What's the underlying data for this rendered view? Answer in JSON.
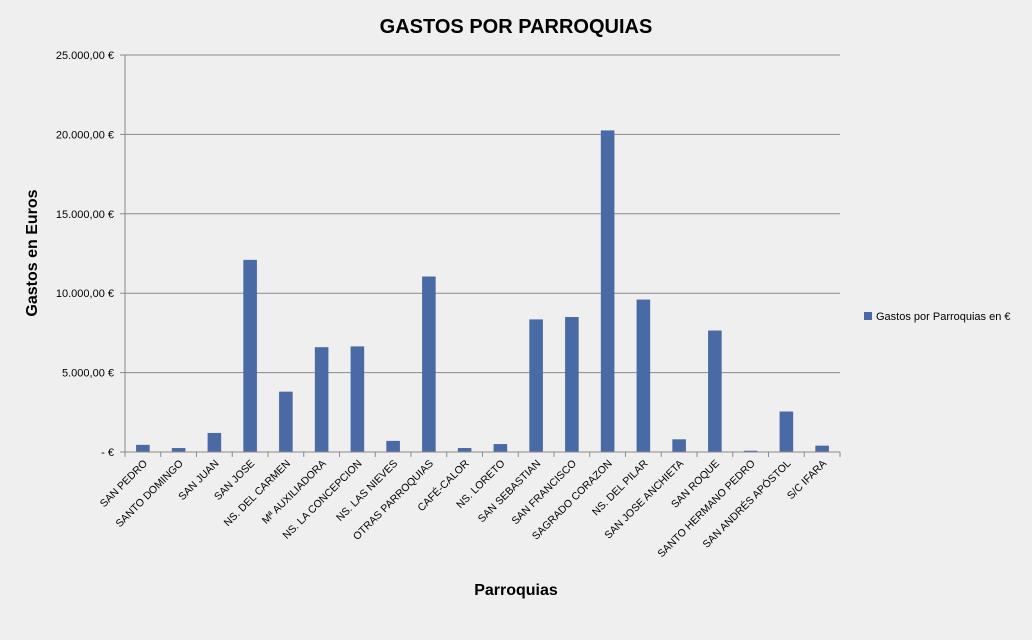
{
  "chart_data": {
    "type": "bar",
    "title": "GASTOS POR PARROQUIAS",
    "xlabel": "Parroquias",
    "ylabel": "Gastos en Euros",
    "ylim": [
      0,
      25000
    ],
    "yticks": [
      0,
      5000,
      10000,
      15000,
      20000,
      25000
    ],
    "ytick_labels": [
      "-   €",
      "5.000,00 €",
      "10.000,00 €",
      "15.000,00 €",
      "20.000,00 €",
      "25.000,00 €"
    ],
    "grid": true,
    "legend_position": "right",
    "bar_color": "#4a6aa5",
    "categories": [
      "SAN PEDRO",
      "SANTO DOMINGO",
      "SAN JUAN",
      "SAN JOSE",
      "NS. DEL CARMEN",
      "Mª AUXILIADORA",
      "NS. LA CONCEPCION",
      "NS. LAS NIEVES",
      "OTRAS PARROQUIAS",
      "CAFÉ-CALOR",
      "NS. LORETO",
      "SAN SEBASTIAN",
      "SAN FRANCISCO",
      "SAGRADO CORAZON",
      "NS. DEL PILAR",
      "SAN JOSE ANCHIETA",
      "SAN ROQUE",
      "SANTO HERMANO PEDRO",
      "SAN ANDRÉS APÓSTOL",
      "S/C IFARA"
    ],
    "series": [
      {
        "name": "Gastos por Parroquias en €",
        "values": [
          450,
          250,
          1200,
          12100,
          3800,
          6600,
          6650,
          700,
          11050,
          250,
          500,
          8350,
          8500,
          20250,
          9600,
          800,
          7650,
          80,
          2550,
          400
        ]
      }
    ]
  }
}
